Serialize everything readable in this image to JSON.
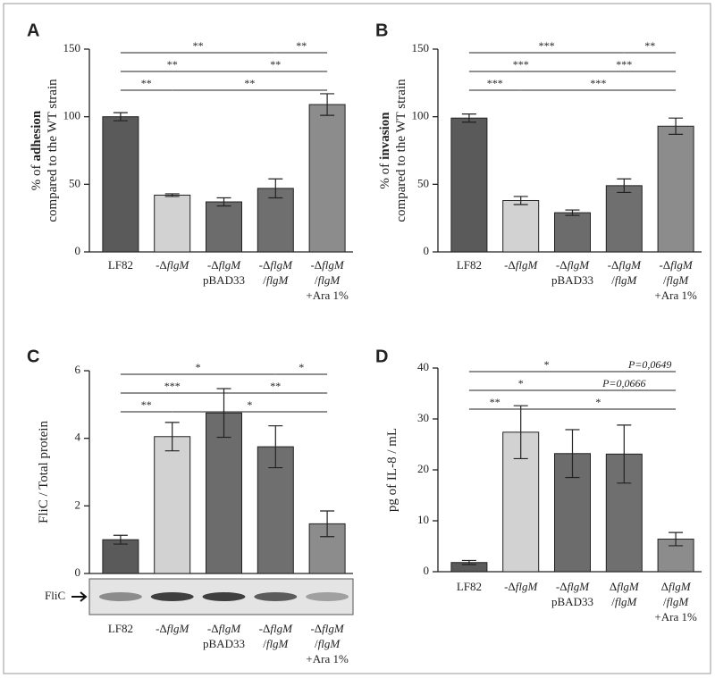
{
  "chart_data": [
    {
      "type": "bar",
      "panel": "A",
      "ylabel": [
        [
          "% of",
          "adhesion"
        ],
        [
          "compared to the WT strain"
        ]
      ],
      "categories": [
        [
          [
            "LF82"
          ]
        ],
        [
          [
            "-Δ",
            "flgM"
          ]
        ],
        [
          [
            "-Δ",
            "flgM"
          ],
          [
            "pBAD33"
          ]
        ],
        [
          [
            "-Δ",
            "flgM"
          ],
          [
            "/",
            "flgM"
          ]
        ],
        [
          [
            "-Δ",
            "flgM"
          ],
          [
            "/",
            "flgM"
          ],
          [
            "+Ara 1%"
          ]
        ]
      ],
      "values": [
        100,
        42,
        37,
        47,
        109
      ],
      "errors": [
        3,
        1,
        3,
        7,
        8
      ],
      "colors": [
        "#5a5a5a",
        "#d2d2d2",
        "#6c6c6c",
        "#6f6f6f",
        "#8c8c8c"
      ],
      "ylim": [
        0,
        150
      ],
      "yticks": [
        0,
        50,
        100,
        150
      ],
      "significance": [
        [
          {
            "from": 0,
            "to": 3,
            "label": "**"
          },
          {
            "from": 3,
            "to": 4,
            "label": "**"
          }
        ],
        [
          {
            "from": 0,
            "to": 2,
            "label": "**"
          },
          {
            "from": 2,
            "to": 4,
            "label": "**"
          }
        ],
        [
          {
            "from": 0,
            "to": 1,
            "label": "**"
          },
          {
            "from": 1,
            "to": 4,
            "label": "**"
          }
        ]
      ]
    },
    {
      "type": "bar",
      "panel": "B",
      "ylabel": [
        [
          "% of",
          "invasion"
        ],
        [
          "compared to the WT strain"
        ]
      ],
      "categories": [
        [
          [
            "LF82"
          ]
        ],
        [
          [
            "-Δ",
            "flgM"
          ]
        ],
        [
          [
            "-Δ",
            "flgM"
          ],
          [
            "pBAD33"
          ]
        ],
        [
          [
            "-Δ",
            "flgM"
          ],
          [
            "/",
            "flgM"
          ]
        ],
        [
          [
            "-Δ",
            "flgM"
          ],
          [
            "/",
            "flgM"
          ],
          [
            "+Ara 1%"
          ]
        ]
      ],
      "values": [
        99,
        38,
        29,
        49,
        93
      ],
      "errors": [
        3,
        3,
        2,
        5,
        6
      ],
      "colors": [
        "#5a5a5a",
        "#d2d2d2",
        "#6c6c6c",
        "#6f6f6f",
        "#8c8c8c"
      ],
      "ylim": [
        0,
        150
      ],
      "yticks": [
        0,
        50,
        100,
        150
      ],
      "significance": [
        [
          {
            "from": 0,
            "to": 3,
            "label": "***"
          },
          {
            "from": 3,
            "to": 4,
            "label": "**"
          }
        ],
        [
          {
            "from": 0,
            "to": 2,
            "label": "***"
          },
          {
            "from": 2,
            "to": 4,
            "label": "***"
          }
        ],
        [
          {
            "from": 0,
            "to": 1,
            "label": "***"
          },
          {
            "from": 1,
            "to": 4,
            "label": "***"
          }
        ]
      ]
    },
    {
      "type": "bar",
      "panel": "C",
      "ylabel": [
        [
          "FliC / Total protein"
        ]
      ],
      "blot_label": "FliC",
      "categories": [
        [
          [
            "LF82"
          ]
        ],
        [
          [
            "-Δ",
            "flgM"
          ]
        ],
        [
          [
            "-Δ",
            "flgM"
          ],
          [
            "pBAD33"
          ]
        ],
        [
          [
            "-Δ",
            "flgM"
          ],
          [
            "/",
            "flgM"
          ]
        ],
        [
          [
            "-Δ",
            "flgM"
          ],
          [
            "/",
            "flgM"
          ],
          [
            "+Ara 1%"
          ]
        ]
      ],
      "values": [
        1.0,
        4.05,
        4.75,
        3.75,
        1.47
      ],
      "errors": [
        0.13,
        0.42,
        0.72,
        0.62,
        0.38
      ],
      "colors": [
        "#5a5a5a",
        "#d2d2d2",
        "#6c6c6c",
        "#6f6f6f",
        "#8c8c8c"
      ],
      "ylim": [
        0,
        6
      ],
      "yticks": [
        0,
        2,
        4,
        6
      ],
      "significance": [
        [
          {
            "from": 0,
            "to": 3,
            "label": "*"
          },
          {
            "from": 3,
            "to": 4,
            "label": "*"
          }
        ],
        [
          {
            "from": 0,
            "to": 2,
            "label": "***"
          },
          {
            "from": 2,
            "to": 4,
            "label": "**"
          }
        ],
        [
          {
            "from": 0,
            "to": 1,
            "label": "**"
          },
          {
            "from": 1,
            "to": 4,
            "label": "*"
          }
        ]
      ]
    },
    {
      "type": "bar",
      "panel": "D",
      "ylabel": [
        [
          "pg of IL-8 / mL"
        ]
      ],
      "categories": [
        [
          [
            "LF82"
          ]
        ],
        [
          [
            "-Δ",
            "flgM"
          ]
        ],
        [
          [
            "-Δ",
            "flgM"
          ],
          [
            "pBAD33"
          ]
        ],
        [
          [
            "Δ",
            "flgM"
          ],
          [
            "/",
            "flgM"
          ]
        ],
        [
          [
            "Δ",
            "flgM"
          ],
          [
            "/",
            "flgM"
          ],
          [
            "+Ara 1%"
          ]
        ]
      ],
      "values": [
        1.8,
        27.4,
        23.2,
        23.1,
        6.4
      ],
      "errors": [
        0.4,
        5.2,
        4.7,
        5.7,
        1.3
      ],
      "colors": [
        "#5a5a5a",
        "#d2d2d2",
        "#6c6c6c",
        "#6f6f6f",
        "#8c8c8c"
      ],
      "ylim": [
        0,
        40
      ],
      "yticks": [
        0,
        10,
        20,
        30,
        40
      ],
      "significance": [
        [
          {
            "from": 0,
            "to": 3,
            "label": "*"
          },
          {
            "from": 3,
            "to": 4,
            "label": "P=0,0649",
            "style": "italic"
          }
        ],
        [
          {
            "from": 0,
            "to": 2,
            "label": "*"
          },
          {
            "from": 2,
            "to": 4,
            "label": "P=0,0666",
            "style": "italic"
          }
        ],
        [
          {
            "from": 0,
            "to": 1,
            "label": "**"
          },
          {
            "from": 1,
            "to": 4,
            "label": "*"
          }
        ]
      ]
    }
  ]
}
